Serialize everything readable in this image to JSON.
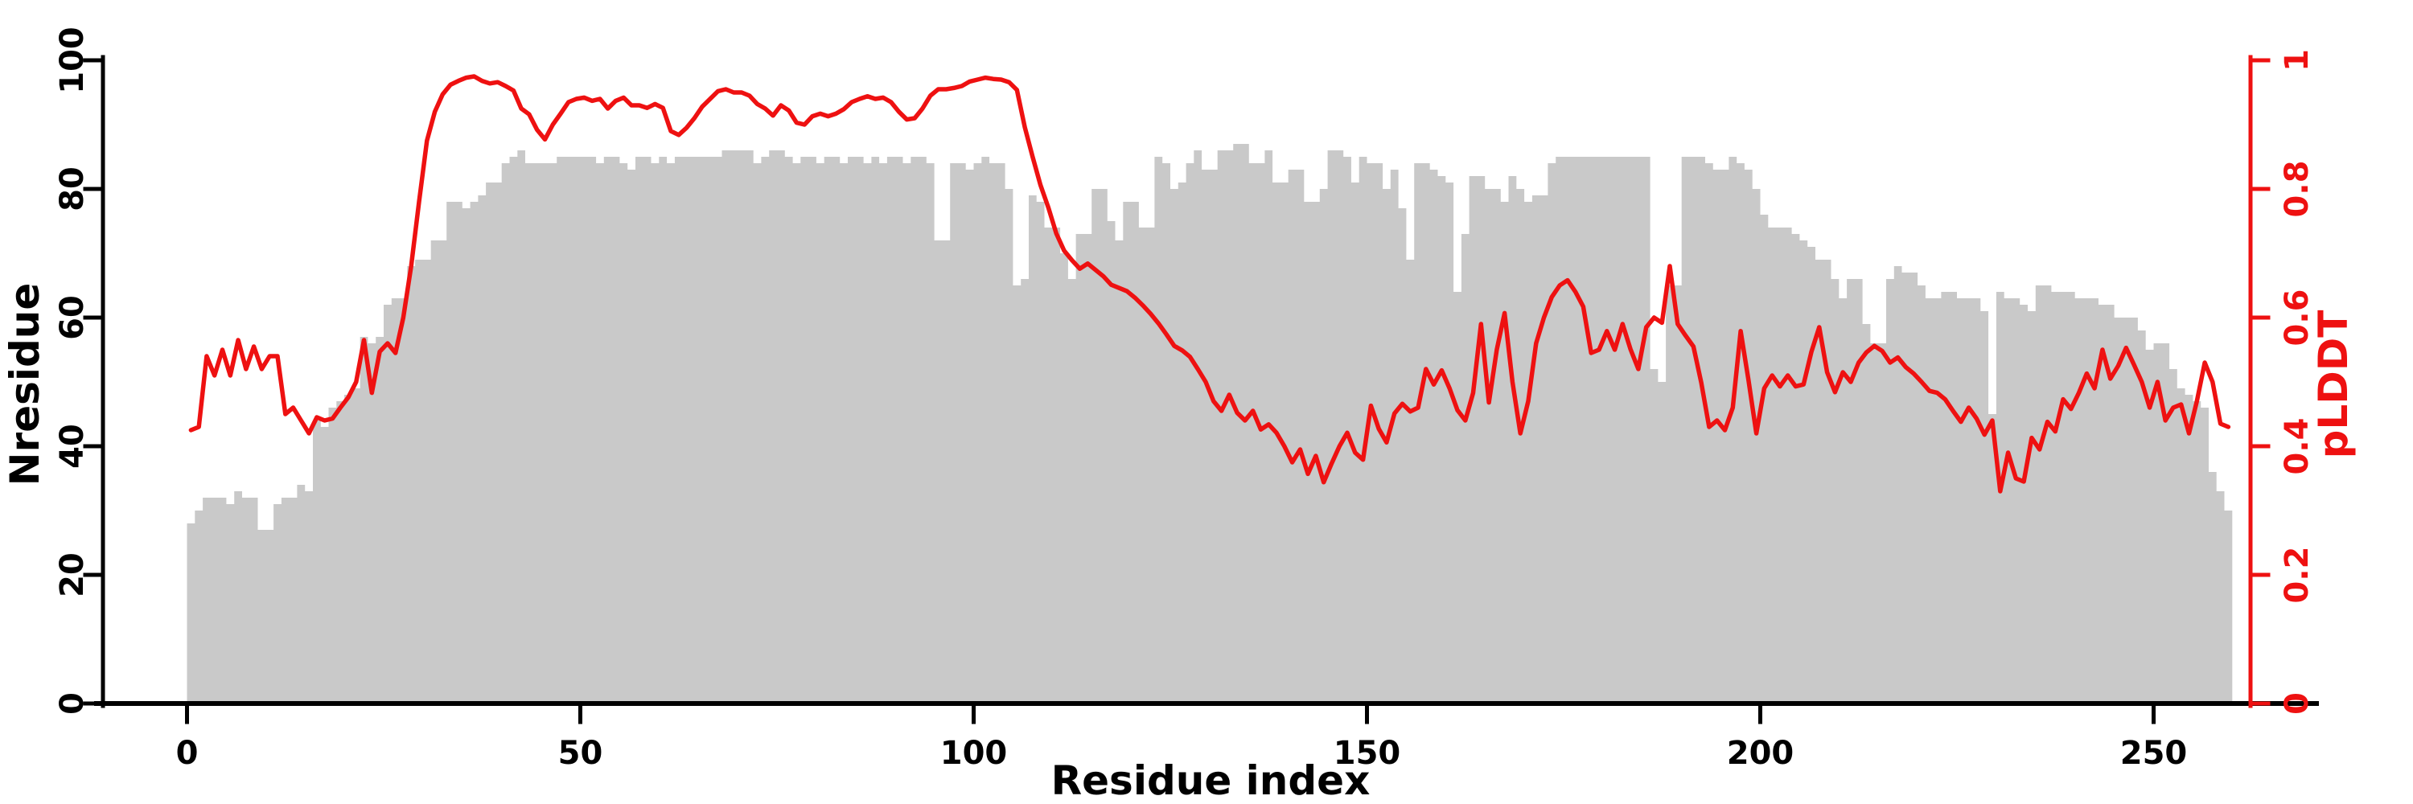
{
  "figure": {
    "xlabel": "Residue index",
    "ylabel_left": "Nresidue",
    "ylabel_right": "pLDDT",
    "colors": {
      "bars": "#c9c9c9",
      "line": "#ee1111",
      "left_axis": "#000000",
      "right_axis": "#ee1111",
      "background": "#ffffff"
    }
  },
  "chart_data": {
    "type": "bar",
    "subtype": "dual-axis histogram with overlaid line",
    "title": "",
    "xlabel": "Residue index",
    "ylabel_left": "Nresidue",
    "ylabel_right": "pLDDT",
    "x_start": 0,
    "n_points": 260,
    "xlim": [
      0,
      260
    ],
    "ylim_left": [
      0,
      100
    ],
    "ylim_right": [
      0,
      1
    ],
    "xticks": [
      0,
      50,
      100,
      150,
      200,
      250
    ],
    "yticks_left": [
      0,
      20,
      40,
      60,
      80,
      100
    ],
    "yticks_right": [
      "0",
      "0.2",
      "0.4",
      "0.6",
      "0.8",
      "1"
    ],
    "grid": false,
    "legend": "none",
    "series": [
      {
        "name": "Nresidue",
        "type": "bar",
        "axis": "left",
        "color": "#c9c9c9",
        "values": [
          28,
          30,
          32,
          32,
          32,
          31,
          33,
          32,
          32,
          27,
          27,
          31,
          32,
          32,
          34,
          33,
          44,
          43,
          46,
          47,
          48,
          49,
          57,
          56,
          57,
          62,
          63,
          63,
          68,
          69,
          69,
          72,
          72,
          78,
          78,
          77,
          78,
          79,
          81,
          81,
          84,
          85,
          86,
          84,
          84,
          84,
          84,
          85,
          85,
          85,
          85,
          85,
          84,
          85,
          85,
          84,
          83,
          85,
          85,
          84,
          85,
          84,
          85,
          85,
          85,
          85,
          85,
          85,
          86,
          86,
          86,
          86,
          84,
          85,
          86,
          86,
          85,
          84,
          85,
          85,
          84,
          85,
          85,
          84,
          85,
          85,
          84,
          85,
          84,
          85,
          85,
          84,
          85,
          85,
          84,
          72,
          72,
          84,
          84,
          83,
          84,
          85,
          84,
          84,
          80,
          65,
          66,
          79,
          78,
          74,
          74,
          70,
          66,
          73,
          73,
          80,
          80,
          75,
          72,
          78,
          78,
          74,
          74,
          85,
          84,
          80,
          81,
          84,
          86,
          83,
          83,
          86,
          86,
          87,
          87,
          84,
          84,
          86,
          81,
          81,
          83,
          83,
          78,
          78,
          80,
          86,
          86,
          85,
          81,
          85,
          84,
          84,
          80,
          83,
          77,
          69,
          84,
          84,
          83,
          82,
          81,
          64,
          73,
          82,
          82,
          80,
          80,
          78,
          82,
          80,
          78,
          79,
          79,
          84,
          85,
          85,
          85,
          85,
          85,
          85,
          85,
          85,
          85,
          85,
          85,
          85,
          52,
          50,
          65,
          65,
          85,
          85,
          85,
          84,
          83,
          83,
          85,
          84,
          83,
          80,
          76,
          74,
          74,
          74,
          73,
          72,
          71,
          69,
          69,
          66,
          63,
          66,
          66,
          59,
          56,
          56,
          66,
          68,
          67,
          67,
          65,
          63,
          63,
          64,
          64,
          63,
          63,
          63,
          61,
          45,
          64,
          63,
          63,
          62,
          61,
          65,
          65,
          64,
          64,
          64,
          63,
          63,
          63,
          62,
          62,
          60,
          60,
          60,
          58,
          55,
          56,
          56,
          52,
          49,
          48,
          47,
          46,
          36,
          33,
          30
        ]
      },
      {
        "name": "pLDDT",
        "type": "line",
        "axis": "right",
        "color": "#ee1111",
        "values": [
          0.425,
          0.43,
          0.54,
          0.51,
          0.55,
          0.51,
          0.565,
          0.52,
          0.555,
          0.52,
          0.54,
          0.54,
          0.45,
          0.46,
          0.44,
          0.42,
          0.445,
          0.44,
          0.443,
          0.46,
          0.476,
          0.5,
          0.565,
          0.483,
          0.547,
          0.56,
          0.545,
          0.6,
          0.68,
          0.78,
          0.875,
          0.92,
          0.947,
          0.962,
          0.968,
          0.973,
          0.975,
          0.968,
          0.964,
          0.966,
          0.96,
          0.953,
          0.925,
          0.916,
          0.892,
          0.877,
          0.9,
          0.917,
          0.935,
          0.94,
          0.942,
          0.937,
          0.94,
          0.925,
          0.937,
          0.942,
          0.93,
          0.93,
          0.926,
          0.932,
          0.926,
          0.89,
          0.884,
          0.895,
          0.91,
          0.928,
          0.94,
          0.952,
          0.955,
          0.95,
          0.95,
          0.945,
          0.932,
          0.925,
          0.914,
          0.93,
          0.922,
          0.903,
          0.9,
          0.913,
          0.917,
          0.913,
          0.917,
          0.924,
          0.935,
          0.94,
          0.944,
          0.94,
          0.942,
          0.935,
          0.92,
          0.908,
          0.91,
          0.925,
          0.945,
          0.955,
          0.955,
          0.957,
          0.96,
          0.967,
          0.97,
          0.973,
          0.971,
          0.97,
          0.966,
          0.954,
          0.896,
          0.85,
          0.806,
          0.771,
          0.731,
          0.704,
          0.689,
          0.676,
          0.684,
          0.674,
          0.664,
          0.651,
          0.646,
          0.641,
          0.631,
          0.619,
          0.606,
          0.591,
          0.574,
          0.556,
          0.549,
          0.539,
          0.52,
          0.5,
          0.47,
          0.455,
          0.48,
          0.452,
          0.44,
          0.455,
          0.426,
          0.434,
          0.421,
          0.4,
          0.375,
          0.395,
          0.357,
          0.385,
          0.344,
          0.373,
          0.4,
          0.421,
          0.39,
          0.379,
          0.463,
          0.427,
          0.406,
          0.451,
          0.466,
          0.454,
          0.46,
          0.52,
          0.496,
          0.518,
          0.49,
          0.456,
          0.44,
          0.483,
          0.59,
          0.468,
          0.55,
          0.607,
          0.5,
          0.42,
          0.47,
          0.56,
          0.6,
          0.632,
          0.65,
          0.658,
          0.64,
          0.617,
          0.545,
          0.55,
          0.579,
          0.55,
          0.59,
          0.551,
          0.52,
          0.585,
          0.6,
          0.592,
          0.68,
          0.59,
          0.572,
          0.555,
          0.499,
          0.43,
          0.44,
          0.425,
          0.46,
          0.579,
          0.503,
          0.42,
          0.49,
          0.51,
          0.493,
          0.51,
          0.493,
          0.496,
          0.547,
          0.585,
          0.515,
          0.484,
          0.515,
          0.5,
          0.53,
          0.546,
          0.556,
          0.548,
          0.53,
          0.538,
          0.523,
          0.513,
          0.5,
          0.486,
          0.483,
          0.473,
          0.455,
          0.438,
          0.46,
          0.443,
          0.418,
          0.44,
          0.33,
          0.39,
          0.35,
          0.345,
          0.413,
          0.395,
          0.438,
          0.423,
          0.473,
          0.458,
          0.483,
          0.513,
          0.49,
          0.55,
          0.505,
          0.525,
          0.553,
          0.527,
          0.5,
          0.46,
          0.5,
          0.44,
          0.46,
          0.465,
          0.42,
          0.47,
          0.53,
          0.5,
          0.435,
          0.43
        ]
      }
    ]
  }
}
